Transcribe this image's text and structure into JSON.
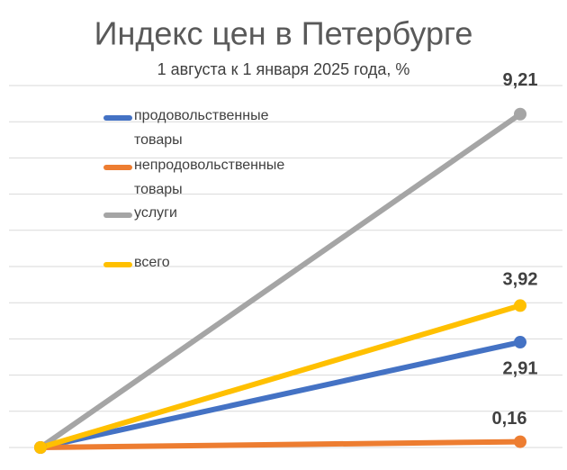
{
  "chart_data": {
    "type": "line",
    "title": "Индекс цен в Петербурге",
    "subtitle": "1 августа к 1 января 2025 года, %",
    "categories": [
      null,
      null
    ],
    "series": [
      {
        "name": "продовольственные товары",
        "color": "#4472c4",
        "values": [
          0,
          2.91
        ],
        "value_labels": [
          null,
          "2,91"
        ]
      },
      {
        "name": "непродовольственные товары",
        "color": "#ed7d31",
        "values": [
          0,
          0.16
        ],
        "value_labels": [
          null,
          "0,16"
        ]
      },
      {
        "name": "услуги",
        "color": "#a5a5a5",
        "values": [
          0,
          9.21
        ],
        "value_labels": [
          null,
          "9,21"
        ]
      },
      {
        "name": "всего",
        "color": "#ffc000",
        "values": [
          0,
          3.92
        ],
        "value_labels": [
          null,
          "3,92"
        ]
      }
    ],
    "ylim": [
      0,
      10
    ],
    "yticks": [
      0,
      1,
      2,
      3,
      4,
      5,
      6,
      7,
      8,
      9,
      10
    ],
    "grid": true
  }
}
